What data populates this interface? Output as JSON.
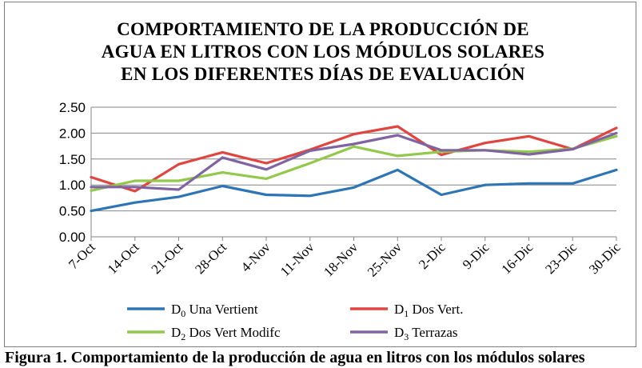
{
  "chart_data": {
    "type": "line",
    "title_lines": [
      "COMPORTAMIENTO DE LA PRODUCCIÓN DE",
      "AGUA EN LITROS CON LOS MÓDULOS SOLARES",
      "EN LOS DIFERENTES DÍAS DE  EVALUACIÓN"
    ],
    "xlabel": "",
    "ylabel": "",
    "categories": [
      "7-Oct",
      "14-Oct",
      "21-Oct",
      "28-Oct",
      "4-Nov",
      "11-Nov",
      "18-Nov",
      "25-Nov",
      "2-Dic",
      "9-Dic",
      "16-Dic",
      "23-Dic",
      "30-Dic"
    ],
    "ylim": [
      0,
      2.5
    ],
    "yticks": [
      "0.00",
      "0.50",
      "1.00",
      "1.50",
      "2.00",
      "2.50"
    ],
    "grid": true,
    "legend_position": "bottom",
    "series": [
      {
        "name": "D0 Una Vertient",
        "label_main": "D",
        "label_sub": "0",
        "label_rest": " Una Vertient",
        "color": "#2e75b6",
        "values": [
          0.5,
          0.66,
          0.77,
          0.98,
          0.81,
          0.79,
          0.95,
          1.29,
          0.81,
          1.0,
          1.03,
          1.03,
          1.29
        ]
      },
      {
        "name": "D1 Dos Vert.",
        "label_main": "D",
        "label_sub": "1",
        "label_rest": " Dos Vert.",
        "color": "#e0453f",
        "values": [
          1.15,
          0.88,
          1.4,
          1.63,
          1.42,
          1.68,
          1.98,
          2.13,
          1.58,
          1.81,
          1.94,
          1.69,
          2.1
        ]
      },
      {
        "name": "D2 Dos Vert Modifc",
        "label_main": "D",
        "label_sub": "2",
        "label_rest": " Dos Vert Modifc",
        "color": "#92c84b",
        "values": [
          0.89,
          1.08,
          1.08,
          1.24,
          1.12,
          1.42,
          1.74,
          1.56,
          1.64,
          1.67,
          1.64,
          1.7,
          1.94
        ]
      },
      {
        "name": "D3 Terrazas",
        "label_main": "D",
        "label_sub": "3",
        "label_rest": " Terrazas",
        "color": "#8064a2",
        "values": [
          0.96,
          0.96,
          0.91,
          1.53,
          1.3,
          1.66,
          1.79,
          1.96,
          1.67,
          1.67,
          1.59,
          1.69,
          2.0
        ]
      }
    ]
  },
  "caption": "Figura 1. Comportamiento de la producción de agua en litros con los módulos solares"
}
